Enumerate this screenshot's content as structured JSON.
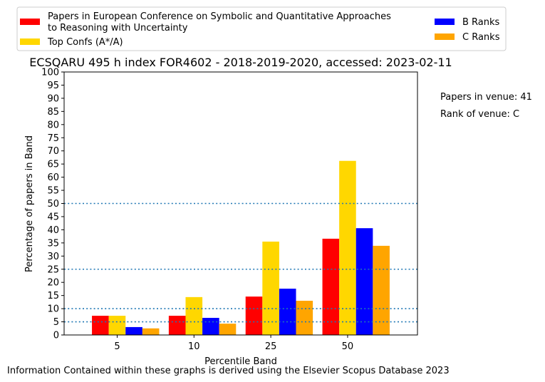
{
  "chart_data": {
    "type": "bar",
    "title": "ECSQARU 495 h index FOR4602 - 2018-2019-2020, accessed: 2023-02-11",
    "xlabel": "Percentile Band",
    "ylabel": "Percentage of papers in Band",
    "categories": [
      "5",
      "10",
      "25",
      "50"
    ],
    "ylim": [
      0,
      100
    ],
    "yticks": [
      0,
      5,
      10,
      15,
      20,
      25,
      30,
      35,
      40,
      45,
      50,
      55,
      60,
      65,
      70,
      75,
      80,
      85,
      90,
      95,
      100
    ],
    "reference_lines": [
      5,
      10,
      25,
      50
    ],
    "grid": false,
    "legend_position": "top",
    "series": [
      {
        "name": "Papers in European Conference on Symbolic and Quantitative Approaches\nto Reasoning with Uncertainty",
        "color": "#ff0000",
        "values": [
          7.3,
          7.3,
          14.6,
          36.6
        ]
      },
      {
        "name": "Top Confs (A*/A)",
        "color": "#ffd700",
        "values": [
          7.3,
          14.4,
          35.5,
          66.2
        ]
      },
      {
        "name": "B Ranks",
        "color": "#0000ff",
        "values": [
          3.0,
          6.5,
          17.6,
          40.6
        ]
      },
      {
        "name": "C Ranks",
        "color": "#ffa500",
        "values": [
          2.5,
          4.3,
          13.0,
          33.9
        ]
      }
    ],
    "annotations": [
      "Papers in venue: 41",
      "Rank of venue: C"
    ],
    "footer": "Information Contained within these graphs is derived using the Elsevier Scopus Database 2023"
  }
}
